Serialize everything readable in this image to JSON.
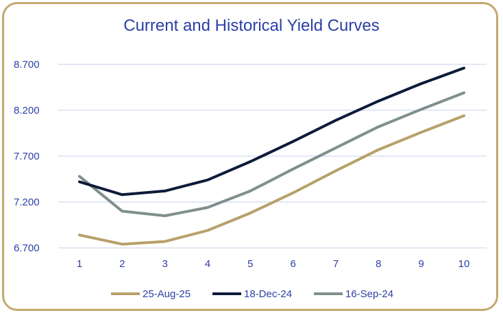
{
  "chart_data": {
    "type": "line",
    "title": "Current and Historical Yield Curves",
    "xlabel": "",
    "ylabel": "",
    "x": [
      1,
      2,
      3,
      4,
      5,
      6,
      7,
      8,
      9,
      10
    ],
    "ylim": [
      6.7,
      8.7
    ],
    "yticks": [
      "6.700",
      "7.200",
      "7.700",
      "8.200",
      "8.700"
    ],
    "grid": "horizontal",
    "legend_position": "bottom",
    "series": [
      {
        "name": "25-Aug-25",
        "color": "#b8a06a",
        "values": [
          6.84,
          6.74,
          6.77,
          6.89,
          7.08,
          7.3,
          7.54,
          7.77,
          7.96,
          8.14
        ]
      },
      {
        "name": "18-Dec-24",
        "color": "#0d1b3a",
        "values": [
          7.42,
          7.28,
          7.32,
          7.44,
          7.64,
          7.86,
          8.09,
          8.3,
          8.49,
          8.66
        ]
      },
      {
        "name": "16-Sep-24",
        "color": "#7f8f8c",
        "values": [
          7.48,
          7.1,
          7.05,
          7.14,
          7.32,
          7.56,
          7.79,
          8.02,
          8.21,
          8.39
        ]
      }
    ],
    "colors": {
      "title": "#2c3fa5",
      "axis_text": "#2c3fa5",
      "grid": "#c6d0ea",
      "frame": "#c3a86e"
    }
  }
}
